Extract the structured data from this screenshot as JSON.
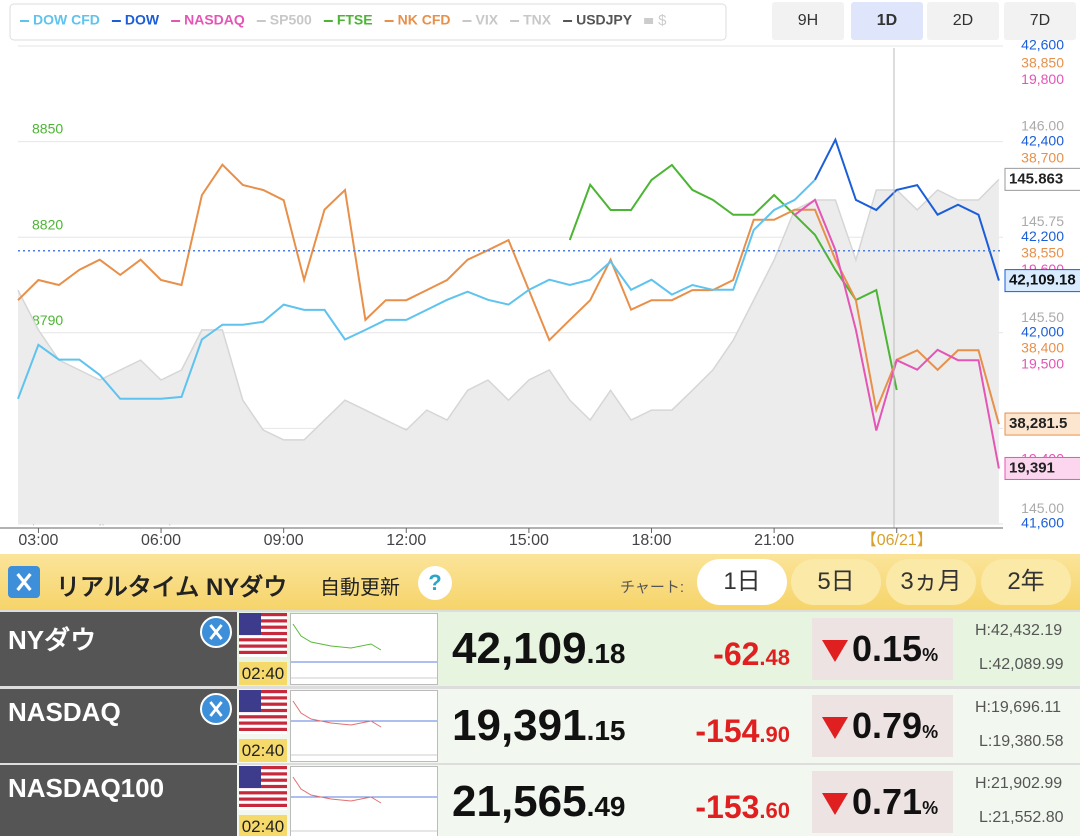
{
  "toolbar": {
    "ranges": [
      "9H",
      "1D",
      "2D",
      "7D"
    ],
    "selected_range": 1
  },
  "chart_data": {
    "type": "line",
    "inactive_series": [
      "SP500",
      "VIX",
      "TNX"
    ],
    "currency_toggle": "$",
    "watermark": "https://nikkei225jp.com/nasdaq/",
    "xlim": [
      2.5,
      26.6
    ],
    "xticks": [
      {
        "value": 3,
        "label": "03:00"
      },
      {
        "value": 6,
        "label": "06:00"
      },
      {
        "value": 9,
        "label": "09:00"
      },
      {
        "value": 12,
        "label": "12:00"
      },
      {
        "value": 15,
        "label": "15:00"
      },
      {
        "value": 18,
        "label": "18:00"
      },
      {
        "value": 21,
        "label": "21:00"
      },
      {
        "value": 24,
        "label": "【06/21】"
      }
    ],
    "x": [
      2.5,
      3,
      3.5,
      4,
      4.5,
      5,
      5.5,
      6,
      6.5,
      7,
      7.5,
      8,
      8.5,
      9,
      9.5,
      10,
      10.5,
      11,
      11.5,
      12,
      12.5,
      13,
      13.5,
      14,
      14.5,
      15,
      15.5,
      16,
      16.5,
      17,
      17.5,
      18,
      18.5,
      19,
      19.5,
      20,
      20.5,
      21,
      21.5,
      22,
      22.5,
      23,
      23.5,
      24,
      24.5,
      25,
      25.5,
      26,
      26.5
    ],
    "series": [
      {
        "name": "USDJPY",
        "color": "#9a9a9a",
        "area": true,
        "side": "right",
        "ylim": [
          144.961,
          146.212
        ],
        "yticks": [
          {
            "value": 146,
            "label": "146.00"
          },
          145.75,
          {
            "value": 145.5,
            "label": "145.50"
          },
          {
            "value": 145,
            "label": "145.00"
          }
        ],
        "values": [
          145.573,
          145.469,
          145.39,
          145.364,
          145.338,
          145.364,
          145.39,
          145.338,
          145.364,
          145.469,
          145.469,
          145.285,
          145.207,
          145.181,
          145.181,
          145.233,
          145.285,
          145.259,
          145.233,
          145.207,
          145.259,
          145.233,
          145.311,
          145.338,
          145.285,
          145.338,
          145.364,
          145.285,
          145.233,
          145.311,
          145.233,
          145.259,
          145.259,
          145.311,
          145.364,
          145.442,
          145.547,
          145.652,
          145.783,
          145.809,
          145.809,
          145.652,
          145.835,
          145.835,
          145.783,
          145.835,
          145.809,
          145.809,
          145.863
        ],
        "value_labels": [
          null,
          null,
          null,
          null,
          null,
          null,
          null,
          null,
          null,
          null,
          null,
          null,
          null,
          null,
          null,
          null,
          null,
          null,
          null,
          null,
          null,
          null,
          null,
          null,
          null,
          null,
          null,
          null,
          null,
          null,
          null,
          null,
          null,
          null,
          null,
          null,
          null,
          null,
          null,
          null,
          null,
          null,
          null,
          null,
          null,
          null,
          null,
          null,
          "145.863"
        ]
      },
      {
        "name": "FTSE",
        "color": "#4cb534",
        "side": "left",
        "ylim": [
          8726.5,
          8876.3
        ],
        "yticks": [
          8850,
          8820,
          8790,
          8760
        ],
        "values": [
          null,
          null,
          null,
          null,
          null,
          null,
          null,
          null,
          null,
          null,
          null,
          null,
          null,
          null,
          null,
          null,
          null,
          null,
          null,
          null,
          null,
          null,
          null,
          null,
          null,
          null,
          null,
          8815.5,
          8832.8,
          8824.9,
          8824.9,
          8834.3,
          8839.0,
          8831.2,
          8828.1,
          8823.4,
          8823.4,
          8829.6,
          8823.4,
          8817.1,
          8806.1,
          8796.7,
          8799.8,
          8768.5,
          null,
          null,
          null,
          null,
          null
        ]
      },
      {
        "name": "NK CFD",
        "color": "#e8904a",
        "side": "right",
        "ylim": [
          38123.7,
          38878.4
        ],
        "yticks": [
          {
            "value": 38850,
            "label": "38,850"
          },
          {
            "value": 38700,
            "label": "38,700"
          },
          {
            "value": 38550,
            "label": "38,550"
          },
          {
            "value": 38400,
            "label": "38,400"
          }
        ],
        "values": [
          38477,
          38509,
          38501,
          38525,
          38541,
          38517,
          38541,
          38509,
          38501,
          38643,
          38691,
          38659,
          38651,
          38635,
          38509,
          38620,
          38651,
          38446,
          38477,
          38477,
          38493,
          38509,
          38541,
          38556,
          38572,
          38493,
          38414,
          38446,
          38477,
          38541,
          38462,
          38477,
          38477,
          38493,
          38493,
          38509,
          38604,
          38604,
          38620,
          38620,
          38541,
          38477,
          38304,
          38383,
          38398,
          38367,
          38398,
          38398,
          38281.5
        ],
        "value_labels": [
          null,
          null,
          null,
          null,
          null,
          null,
          null,
          null,
          null,
          null,
          null,
          null,
          null,
          null,
          null,
          null,
          null,
          null,
          null,
          null,
          null,
          null,
          null,
          null,
          null,
          null,
          null,
          null,
          null,
          null,
          null,
          null,
          null,
          null,
          null,
          null,
          null,
          null,
          null,
          null,
          null,
          null,
          null,
          null,
          null,
          null,
          null,
          null,
          "38,281.5"
        ]
      },
      {
        "name": "NASDAQ",
        "color": "#e455b5",
        "side": "right",
        "ylim": [
          19332.5,
          19836
        ],
        "yticks": [
          {
            "value": 19800,
            "label": "19,800"
          },
          {
            "value": 19700,
            "label": "19,700"
          },
          {
            "value": 19600,
            "label": "19,600"
          },
          {
            "value": 19500,
            "label": "19,500"
          },
          {
            "value": 19400,
            "label": "19,400"
          }
        ],
        "values": [
          null,
          null,
          null,
          null,
          null,
          null,
          null,
          null,
          null,
          null,
          null,
          null,
          null,
          null,
          null,
          null,
          null,
          null,
          null,
          null,
          null,
          null,
          null,
          null,
          null,
          null,
          null,
          null,
          null,
          null,
          null,
          null,
          null,
          null,
          null,
          null,
          null,
          null,
          19658,
          19674,
          19621,
          19537,
          19431,
          19505,
          19495,
          19516,
          19505,
          19505,
          19391
        ],
        "value_labels": [
          null,
          null,
          null,
          null,
          null,
          null,
          null,
          null,
          null,
          null,
          null,
          null,
          null,
          null,
          null,
          null,
          null,
          null,
          null,
          null,
          null,
          null,
          null,
          null,
          null,
          null,
          null,
          null,
          null,
          null,
          null,
          null,
          null,
          null,
          null,
          null,
          null,
          null,
          null,
          null,
          null,
          null,
          null,
          null,
          null,
          null,
          null,
          null,
          "19,391"
        ]
      },
      {
        "name": "DOW CFD",
        "color": "#5ec3ee",
        "side": "none",
        "ylim": [
          41600,
          42600
        ],
        "values": [
          41862,
          41975,
          41944,
          41944,
          41912,
          41862,
          41862,
          41862,
          41866,
          41986,
          42017,
          42017,
          42023,
          42059,
          42048,
          42048,
          41986,
          42006,
          42027,
          42027,
          42048,
          42069,
          42086,
          42069,
          42059,
          42090,
          42111,
          42100,
          42111,
          42149,
          42090,
          42111,
          42080,
          42100,
          42090,
          42090,
          42215,
          42257,
          42278,
          42320,
          null,
          null,
          null,
          null,
          null,
          null,
          null,
          null,
          null
        ]
      },
      {
        "name": "DOW",
        "color": "#1b5ed8",
        "side": "right",
        "grid": true,
        "ylim": [
          41600,
          42600
        ],
        "ref_line": 42171.66,
        "yticks": [
          {
            "value": 42600,
            "label": "42,600"
          },
          {
            "value": 42400,
            "label": "42,400"
          },
          {
            "value": 42200,
            "label": "42,200"
          },
          {
            "value": 42000,
            "label": "42,000"
          },
          {
            "value": 41800,
            "label": "41,800"
          },
          {
            "value": 41600,
            "label": "41,600"
          }
        ],
        "values": [
          null,
          null,
          null,
          null,
          null,
          null,
          null,
          null,
          null,
          null,
          null,
          null,
          null,
          null,
          null,
          null,
          null,
          null,
          null,
          null,
          null,
          null,
          null,
          null,
          null,
          null,
          null,
          null,
          null,
          null,
          null,
          null,
          null,
          null,
          null,
          null,
          null,
          null,
          null,
          42320,
          42404,
          42278,
          42257,
          42299,
          42309,
          42247,
          42268,
          42247,
          42109.18
        ],
        "value_labels": [
          null,
          null,
          null,
          null,
          null,
          null,
          null,
          null,
          null,
          null,
          null,
          null,
          null,
          null,
          null,
          null,
          null,
          null,
          null,
          null,
          null,
          null,
          null,
          null,
          null,
          null,
          null,
          null,
          null,
          null,
          null,
          null,
          null,
          null,
          null,
          null,
          null,
          null,
          null,
          null,
          null,
          null,
          null,
          null,
          null,
          null,
          null,
          null,
          "42,109.18"
        ]
      }
    ]
  },
  "panel": {
    "title": "リアルタイム NYダウ",
    "auto_update": "自動更新",
    "help": "?",
    "chart_label": "チャート:",
    "periods": [
      "1日",
      "5日",
      "3ヵ月",
      "2年"
    ],
    "selected_period": 0
  },
  "table": {
    "rows": [
      {
        "name": "NYダウ",
        "time": "02:40",
        "price_int": "42,109",
        "price_dec": ".18",
        "change_int": "-62",
        "change_dec": ".48",
        "pct": "0.15",
        "pct_unit": "%",
        "high": "H:42,432.19",
        "low": "L:42,089.99",
        "x_icon": true
      },
      {
        "name": "NASDAQ",
        "time": "02:40",
        "price_int": "19,391",
        "price_dec": ".15",
        "change_int": "-154",
        "change_dec": ".90",
        "pct": "0.79",
        "pct_unit": "%",
        "high": "H:19,696.11",
        "low": "L:19,380.58",
        "x_icon": true
      },
      {
        "name": "NASDAQ100",
        "time": "02:40",
        "price_int": "21,565",
        "price_dec": ".49",
        "change_int": "-153",
        "change_dec": ".60",
        "pct": "0.71",
        "pct_unit": "%",
        "high": "H:21,902.99",
        "low": "L:21,552.80",
        "x_icon": false
      }
    ]
  }
}
